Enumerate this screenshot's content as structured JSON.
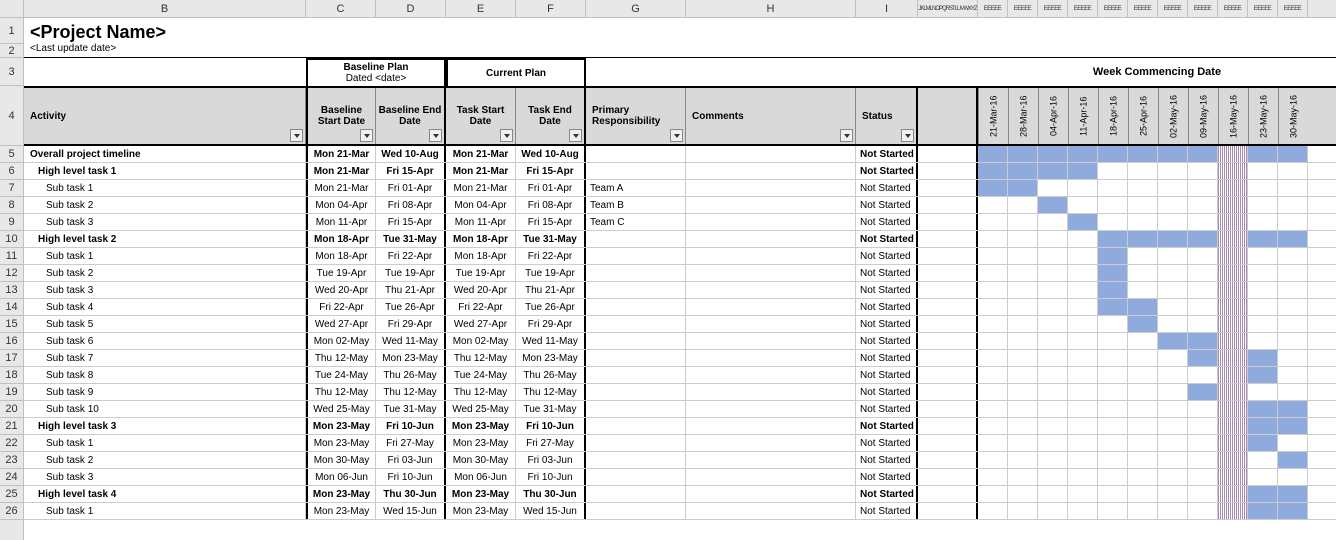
{
  "title": "<Project Name>",
  "subtitle": "<Last update date>",
  "columns_letters": [
    "B",
    "C",
    "D",
    "E",
    "F",
    "G",
    "H",
    "I"
  ],
  "tiny_label_before_gantt": "JKLMLNOPQRSTLUVWXYZ",
  "col_widths": {
    "rownum": 24,
    "B": 282,
    "C": 70,
    "D": 70,
    "E": 70,
    "F": 70,
    "G": 100,
    "H": 170,
    "I": 62,
    "tiny_zone": 60,
    "gantt_col": 30
  },
  "row_heights": {
    "colhdr": 18,
    "r1": 26,
    "r2": 14,
    "r3": 28,
    "r4": 60,
    "data": 17
  },
  "plan_headers": {
    "baseline": {
      "title": "Baseline Plan",
      "sub": "Dated <date>"
    },
    "current": {
      "title": "Current Plan"
    },
    "week": "Week Commencing Date"
  },
  "headers": {
    "activity": "Activity",
    "baseline_start": "Baseline Start Date",
    "baseline_end": "Baseline End Date",
    "task_start": "Task Start Date",
    "task_end": "Task End Date",
    "primary": "Primary Responsibility",
    "comments": "Comments",
    "status": "Status"
  },
  "gantt_dates": [
    "21-Mar-16",
    "28-Mar-16",
    "04-Apr-16",
    "11-Apr-16",
    "18-Apr-16",
    "25-Apr-16",
    "02-May-16",
    "09-May-16",
    "16-May-16",
    "23-May-16",
    "30-May-16"
  ],
  "hatched_col_index": 8,
  "rows": [
    {
      "n": 5,
      "bold": true,
      "indent": 0,
      "activity": "Overall project timeline",
      "bs": "Mon 21-Mar",
      "be": "Wed 10-Aug",
      "ts": "Mon 21-Mar",
      "te": "Wed 10-Aug",
      "pr": "",
      "cm": "",
      "st": "Not Started",
      "bar": [
        0,
        10
      ]
    },
    {
      "n": 6,
      "bold": true,
      "indent": 1,
      "activity": "High level task 1",
      "bs": "Mon 21-Mar",
      "be": "Fri 15-Apr",
      "ts": "Mon 21-Mar",
      "te": "Fri 15-Apr",
      "pr": "",
      "cm": "",
      "st": "Not Started",
      "bar": [
        0,
        3
      ]
    },
    {
      "n": 7,
      "bold": false,
      "indent": 2,
      "activity": "Sub task 1",
      "bs": "Mon 21-Mar",
      "be": "Fri 01-Apr",
      "ts": "Mon 21-Mar",
      "te": "Fri 01-Apr",
      "pr": "Team A",
      "cm": "",
      "st": "Not Started",
      "bar": [
        0,
        1
      ]
    },
    {
      "n": 8,
      "bold": false,
      "indent": 2,
      "activity": "Sub task 2",
      "bs": "Mon 04-Apr",
      "be": "Fri 08-Apr",
      "ts": "Mon 04-Apr",
      "te": "Fri 08-Apr",
      "pr": "Team B",
      "cm": "",
      "st": "Not Started",
      "bar": [
        2,
        2
      ]
    },
    {
      "n": 9,
      "bold": false,
      "indent": 2,
      "activity": "Sub task 3",
      "bs": "Mon 11-Apr",
      "be": "Fri 15-Apr",
      "ts": "Mon 11-Apr",
      "te": "Fri 15-Apr",
      "pr": "Team C",
      "cm": "",
      "st": "Not Started",
      "bar": [
        3,
        3
      ]
    },
    {
      "n": 10,
      "bold": true,
      "indent": 1,
      "activity": "High level task 2",
      "bs": "Mon 18-Apr",
      "be": "Tue 31-May",
      "ts": "Mon 18-Apr",
      "te": "Tue 31-May",
      "pr": "",
      "cm": "",
      "st": "Not Started",
      "bar": [
        4,
        10
      ]
    },
    {
      "n": 11,
      "bold": false,
      "indent": 2,
      "activity": "Sub task 1",
      "bs": "Mon 18-Apr",
      "be": "Fri 22-Apr",
      "ts": "Mon 18-Apr",
      "te": "Fri 22-Apr",
      "pr": "",
      "cm": "",
      "st": "Not Started",
      "bar": [
        4,
        4
      ]
    },
    {
      "n": 12,
      "bold": false,
      "indent": 2,
      "activity": "Sub task 2",
      "bs": "Tue 19-Apr",
      "be": "Tue 19-Apr",
      "ts": "Tue 19-Apr",
      "te": "Tue 19-Apr",
      "pr": "",
      "cm": "",
      "st": "Not Started",
      "bar": [
        4,
        4
      ]
    },
    {
      "n": 13,
      "bold": false,
      "indent": 2,
      "activity": "Sub task 3",
      "bs": "Wed 20-Apr",
      "be": "Thu 21-Apr",
      "ts": "Wed 20-Apr",
      "te": "Thu 21-Apr",
      "pr": "",
      "cm": "",
      "st": "Not Started",
      "bar": [
        4,
        4
      ]
    },
    {
      "n": 14,
      "bold": false,
      "indent": 2,
      "activity": "Sub task 4",
      "bs": "Fri 22-Apr",
      "be": "Tue 26-Apr",
      "ts": "Fri 22-Apr",
      "te": "Tue 26-Apr",
      "pr": "",
      "cm": "",
      "st": "Not Started",
      "bar": [
        4,
        5
      ]
    },
    {
      "n": 15,
      "bold": false,
      "indent": 2,
      "activity": "Sub task 5",
      "bs": "Wed 27-Apr",
      "be": "Fri 29-Apr",
      "ts": "Wed 27-Apr",
      "te": "Fri 29-Apr",
      "pr": "",
      "cm": "",
      "st": "Not Started",
      "bar": [
        5,
        5
      ]
    },
    {
      "n": 16,
      "bold": false,
      "indent": 2,
      "activity": "Sub task 6",
      "bs": "Mon 02-May",
      "be": "Wed 11-May",
      "ts": "Mon 02-May",
      "te": "Wed 11-May",
      "pr": "",
      "cm": "",
      "st": "Not Started",
      "bar": [
        6,
        7
      ]
    },
    {
      "n": 17,
      "bold": false,
      "indent": 2,
      "activity": "Sub task 7",
      "bs": "Thu 12-May",
      "be": "Mon 23-May",
      "ts": "Thu 12-May",
      "te": "Mon 23-May",
      "pr": "",
      "cm": "",
      "st": "Not Started",
      "bar": [
        7,
        9
      ]
    },
    {
      "n": 18,
      "bold": false,
      "indent": 2,
      "activity": "Sub task 8",
      "bs": "Tue 24-May",
      "be": "Thu 26-May",
      "ts": "Tue 24-May",
      "te": "Thu 26-May",
      "pr": "",
      "cm": "",
      "st": "Not Started",
      "bar": [
        9,
        9
      ]
    },
    {
      "n": 19,
      "bold": false,
      "indent": 2,
      "activity": "Sub task 9",
      "bs": "Thu 12-May",
      "be": "Thu 12-May",
      "ts": "Thu 12-May",
      "te": "Thu 12-May",
      "pr": "",
      "cm": "",
      "st": "Not Started",
      "bar": [
        7,
        7
      ]
    },
    {
      "n": 20,
      "bold": false,
      "indent": 2,
      "activity": "Sub task 10",
      "bs": "Wed 25-May",
      "be": "Tue 31-May",
      "ts": "Wed 25-May",
      "te": "Tue 31-May",
      "pr": "",
      "cm": "",
      "st": "Not Started",
      "bar": [
        9,
        10
      ]
    },
    {
      "n": 21,
      "bold": true,
      "indent": 1,
      "activity": "High level task 3",
      "bs": "Mon 23-May",
      "be": "Fri 10-Jun",
      "ts": "Mon 23-May",
      "te": "Fri 10-Jun",
      "pr": "",
      "cm": "",
      "st": "Not Started",
      "bar": [
        9,
        10
      ]
    },
    {
      "n": 22,
      "bold": false,
      "indent": 2,
      "activity": "Sub task 1",
      "bs": "Mon 23-May",
      "be": "Fri 27-May",
      "ts": "Mon 23-May",
      "te": "Fri 27-May",
      "pr": "",
      "cm": "",
      "st": "Not Started",
      "bar": [
        9,
        9
      ]
    },
    {
      "n": 23,
      "bold": false,
      "indent": 2,
      "activity": "Sub task 2",
      "bs": "Mon 30-May",
      "be": "Fri 03-Jun",
      "ts": "Mon 30-May",
      "te": "Fri 03-Jun",
      "pr": "",
      "cm": "",
      "st": "Not Started",
      "bar": [
        10,
        10
      ]
    },
    {
      "n": 24,
      "bold": false,
      "indent": 2,
      "activity": "Sub task 3",
      "bs": "Mon 06-Jun",
      "be": "Fri 10-Jun",
      "ts": "Mon 06-Jun",
      "te": "Fri 10-Jun",
      "pr": "",
      "cm": "",
      "st": "Not Started",
      "bar": null
    },
    {
      "n": 25,
      "bold": true,
      "indent": 1,
      "activity": "High level task 4",
      "bs": "Mon 23-May",
      "be": "Thu 30-Jun",
      "ts": "Mon 23-May",
      "te": "Thu 30-Jun",
      "pr": "",
      "cm": "",
      "st": "Not Started",
      "bar": [
        9,
        10
      ]
    },
    {
      "n": 26,
      "bold": false,
      "indent": 2,
      "activity": "Sub task 1",
      "bs": "Mon 23-May",
      "be": "Wed 15-Jun",
      "ts": "Mon 23-May",
      "te": "Wed 15-Jun",
      "pr": "",
      "cm": "",
      "st": "Not Started",
      "bar": [
        9,
        10
      ]
    }
  ],
  "colors": {
    "header_bg": "#d9d9d9",
    "grid_bg": "#e8e8e8",
    "border": "#c0c0c0",
    "cell_border": "#cccccc",
    "thick_border": "#000000",
    "bar_fill": "#8faadc",
    "hatched": "#a98ab5"
  }
}
